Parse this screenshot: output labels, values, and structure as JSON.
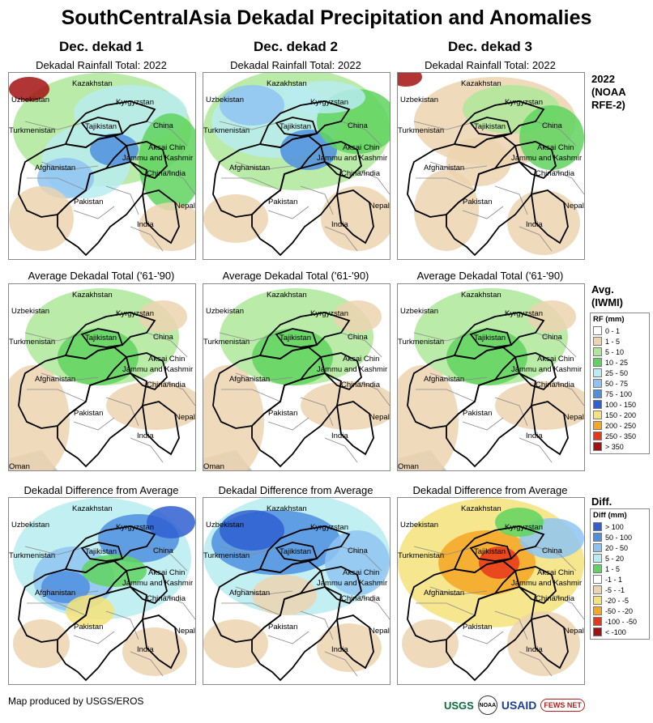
{
  "title": "SouthCentralAsia Dekadal Precipitation and Anomalies",
  "columns": [
    "Dec. dekad 1",
    "Dec. dekad 2",
    "Dec. dekad 3"
  ],
  "row_captions": {
    "rainfall": "Dekadal Rainfall Total: 2022",
    "average": "Average Dekadal Total ('61-'90)",
    "difference": "Dekadal Difference from Average"
  },
  "side_labels": {
    "rainfall": [
      "2022",
      "(NOAA",
      "RFE-2)"
    ],
    "average": [
      "Avg.",
      "(IWMI)"
    ],
    "difference": [
      "Diff."
    ]
  },
  "map_labels": {
    "kazakhstan": "Kazakhstan",
    "uzbekistan": "Uzbekistan",
    "kyrgyzstan": "Kyrgyzstan",
    "turkmenistan": "Turkmenistan",
    "tajikistan": "Tajikistan",
    "china": "China",
    "aksai_chin": "Aksai Chin",
    "jammu_kashmir": "Jammu and Kashmir",
    "china_india": "China/India",
    "afghanistan": "Afghanistan",
    "pakistan": "Pakistan",
    "nepal": "Nepal",
    "india": "India",
    "oman": "Oman"
  },
  "rf_legend": {
    "title": "RF (mm)",
    "items": [
      {
        "label": "0 - 1",
        "color": "#ffffff"
      },
      {
        "label": "1 - 5",
        "color": "#ecd4b0"
      },
      {
        "label": "5 - 10",
        "color": "#aee89a"
      },
      {
        "label": "10 - 25",
        "color": "#5fd35f"
      },
      {
        "label": "25 - 50",
        "color": "#b7ecf0"
      },
      {
        "label": "50 - 75",
        "color": "#8fc4f2"
      },
      {
        "label": "75 - 100",
        "color": "#4f8fe0"
      },
      {
        "label": "100 - 150",
        "color": "#2f5fd0"
      },
      {
        "label": "150 - 200",
        "color": "#f5e27a"
      },
      {
        "label": "200 - 250",
        "color": "#f5a623"
      },
      {
        "label": "250 - 350",
        "color": "#e8361a"
      },
      {
        "label": "> 350",
        "color": "#a31212"
      }
    ]
  },
  "diff_legend": {
    "title": "Diff (mm)",
    "items": [
      {
        "label": "> 100",
        "color": "#2f5fd0"
      },
      {
        "label": "50 - 100",
        "color": "#4f8fe0"
      },
      {
        "label": "20 - 50",
        "color": "#8fc4f2"
      },
      {
        "label": "5 - 20",
        "color": "#b7ecf0"
      },
      {
        "label": "1 - 5",
        "color": "#5fd35f"
      },
      {
        "label": "-1 - 1",
        "color": "#ffffff"
      },
      {
        "label": "-5 - -1",
        "color": "#ecd4b0"
      },
      {
        "label": "-20 - -5",
        "color": "#f5e27a"
      },
      {
        "label": "-50 - -20",
        "color": "#f5a623"
      },
      {
        "label": "-100 - -50",
        "color": "#e8361a"
      },
      {
        "label": "< -100",
        "color": "#a31212"
      }
    ]
  },
  "footer": "Map produced by USGS/EROS",
  "logos": {
    "usgs": "USGS",
    "noaa": "NOAA",
    "usaid": "USAID",
    "fews": "FEWS NET"
  }
}
